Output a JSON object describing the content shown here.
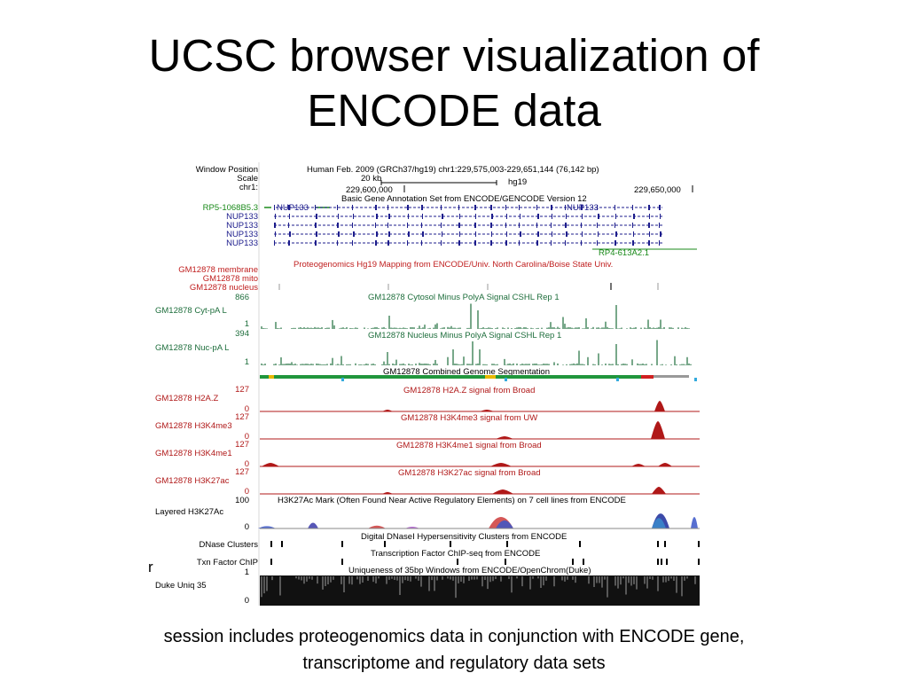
{
  "slide": {
    "title_line1": "UCSC browser visualization of",
    "title_line2": "ENCODE data",
    "caption_line1": "session includes proteogenomics data in conjunction with ENCODE gene,",
    "caption_line2": "transcriptome and regulatory data sets",
    "stray_char": "r"
  },
  "browser": {
    "header": {
      "window_position_label": "Window Position",
      "scale_label": "Scale",
      "chrom_label": "chr1:",
      "assembly_position": "Human Feb. 2009 (GRCh37/hg19)   chr1:229,575,003-229,651,144 (76,142 bp)",
      "scale_bar": "20 kb",
      "genome": "hg19",
      "coord_left": "229,600,000",
      "coord_right": "229,650,000"
    },
    "genes": {
      "track_title": "Basic Gene Annotation Set from ENCODE/GENCODE Version 12",
      "left_gene": "RP5-1068B5.3",
      "transcripts": [
        "NUP133",
        "NUP133",
        "NUP133",
        "NUP133",
        "NUP133"
      ],
      "inline_left": "NUP133",
      "inline_right": "NUP133",
      "right_gene": "RP4-613A2.1"
    },
    "proteo": {
      "track_title": "Proteogenomics Hg19 Mapping from ENCODE/Univ. North Carolina/Boise State Univ.",
      "labels": [
        "GM12878 membrane",
        "GM12878 mito",
        "GM12878 nucleus"
      ]
    },
    "rna": [
      {
        "label": "GM12878 Cyt-pA L",
        "max": "866",
        "min": "1",
        "title": "GM12878 Cytosol Minus PolyA Signal CSHL Rep 1"
      },
      {
        "label": "GM12878 Nuc-pA L",
        "max": "394",
        "min": "1",
        "title": "GM12878 Nucleus Minus PolyA Signal CSHL Rep 1"
      }
    ],
    "segmentation": {
      "title": "GM12878 Combined Genome Segmentation"
    },
    "histone": [
      {
        "label": "GM12878 H2A.Z",
        "max": "127",
        "min": "0",
        "title": "GM12878 H2A.Z signal from Broad"
      },
      {
        "label": "GM12878 H3K4me3",
        "max": "127",
        "min": "0",
        "title": "GM12878 H3K4me3 signal from UW"
      },
      {
        "label": "GM12878 H3K4me1",
        "max": "127",
        "min": "0",
        "title": "GM12878 H3K4me1 signal from Broad"
      },
      {
        "label": "GM12878 H3K27ac",
        "max": "127",
        "min": "0",
        "title": "GM12878 H3K27ac signal from Broad"
      }
    ],
    "layered": {
      "label": "Layered H3K27Ac",
      "max": "100",
      "min": "0",
      "title": "H3K27Ac Mark (Often Found Near Active Regulatory Elements) on 7 cell lines from ENCODE"
    },
    "dnase": {
      "label": "DNase Clusters",
      "title": "Digital DNaseI Hypersensitivity Clusters from ENCODE"
    },
    "txn": {
      "label": "Txn Factor ChIP",
      "title": "Transcription Factor ChIP-seq from ENCODE"
    },
    "uniq": {
      "label": "Duke Uniq 35",
      "max": "1",
      "min": "0",
      "title": "Uniqueness of 35bp Windows from ENCODE/OpenChrom(Duke)"
    },
    "colors": {
      "gene_navy": "#1c1c8c",
      "gene_green": "#1a8a1a",
      "proteo_red": "#c02020",
      "rna_green": "#1e6e3c",
      "histone_red": "#b01818",
      "segment_green": "#20963c",
      "layered_blue": "#1a2a9a",
      "uniq_black": "#111111"
    }
  }
}
